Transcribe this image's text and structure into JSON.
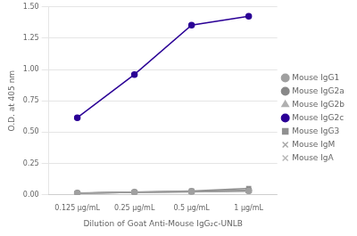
{
  "chart_data": {
    "type": "line",
    "xlabel": "Dilution of Goat Anti-Mouse IgG₂c-UNLB",
    "ylabel": "O.D. at 405 nm",
    "categories": [
      "0.125 μg/mL",
      "0.25 μg/mL",
      "0.5 μg/mL",
      "1 μg/mL"
    ],
    "series": [
      {
        "name": "Mouse IgG1",
        "color": "#a0a0a0",
        "marker": "circle",
        "values": [
          0.012,
          0.018,
          0.022,
          0.03
        ]
      },
      {
        "name": "Mouse IgG2a",
        "color": "#888888",
        "marker": "circle",
        "values": [
          0.013,
          0.02,
          0.025,
          0.035
        ]
      },
      {
        "name": "Mouse IgG2b",
        "color": "#b0b0b0",
        "marker": "triangle",
        "values": [
          0.011,
          0.018,
          0.023,
          0.028
        ]
      },
      {
        "name": "Mouse IgG2c",
        "color": "#2b0096",
        "marker": "circle",
        "values": [
          0.615,
          0.96,
          1.355,
          1.425
        ]
      },
      {
        "name": "Mouse IgG3",
        "color": "#909090",
        "marker": "square",
        "values": [
          0.012,
          0.02,
          0.03,
          0.05
        ]
      },
      {
        "name": "Mouse IgM",
        "color": "#a8a8a8",
        "marker": "x",
        "values": [
          0.011,
          0.019,
          0.024,
          0.032
        ]
      },
      {
        "name": "Mouse IgA",
        "color": "#b8b8b8",
        "marker": "x",
        "values": [
          0.012,
          0.019,
          0.026,
          0.038
        ]
      }
    ],
    "ylim": [
      0.0,
      1.5
    ],
    "yticks": [
      {
        "value": 0,
        "label": "0.00"
      },
      {
        "value": 0.25,
        "label": "0.25"
      },
      {
        "value": 0.5,
        "label": "0.50"
      },
      {
        "value": 0.75,
        "label": "0.75"
      },
      {
        "value": 1,
        "label": "1.00"
      },
      {
        "value": 1.25,
        "label": "1.25"
      },
      {
        "value": 1.5,
        "label": "1.50"
      }
    ],
    "grid": true,
    "legend": "right"
  }
}
